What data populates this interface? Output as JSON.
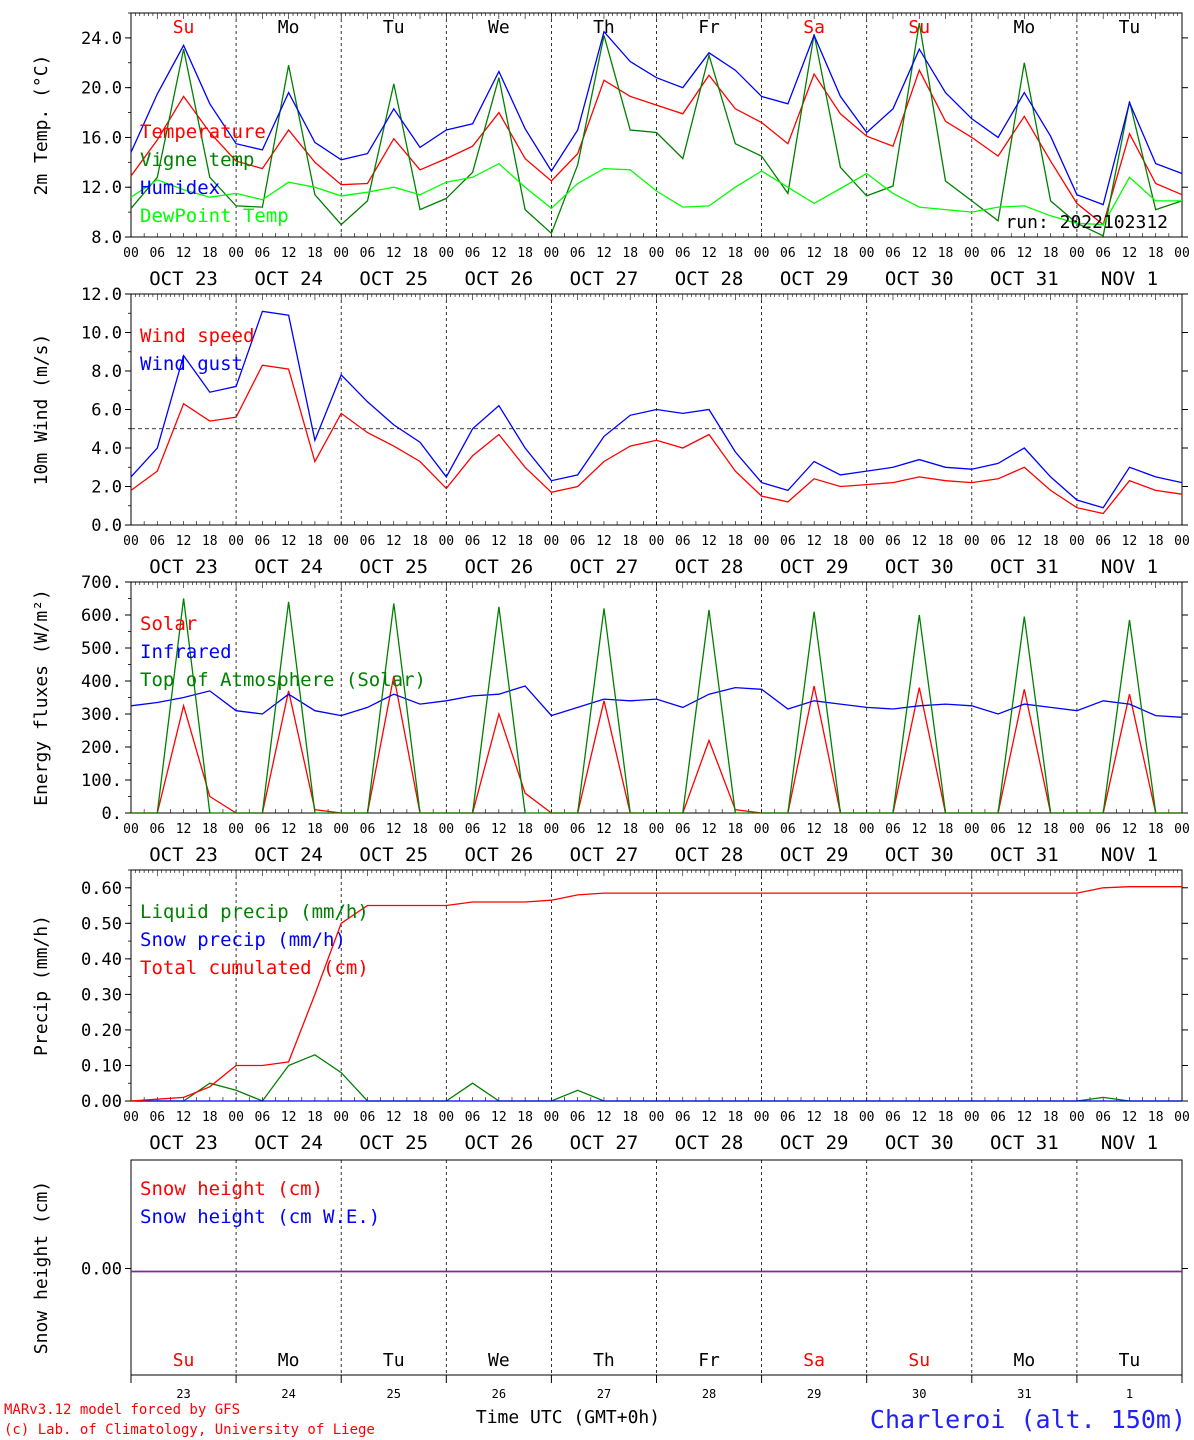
{
  "meta": {
    "run_label": "run: 2022102312",
    "model_label": "MARv3.12 model forced by GFS",
    "credit_label": "(c) Lab. of Climatology, University of Liege",
    "time_label": "Time UTC (GMT+0h)",
    "station_label": "Charleroi (alt. 150m)"
  },
  "days": {
    "names": [
      "Su",
      "Mo",
      "Tu",
      "We",
      "Th",
      "Fr",
      "Sa",
      "Su",
      "Mo",
      "Tu"
    ],
    "name_colors": [
      "#ff0000",
      "#000000",
      "#000000",
      "#000000",
      "#000000",
      "#000000",
      "#ff0000",
      "#ff0000",
      "#000000",
      "#000000"
    ],
    "date_labels": [
      "OCT 23",
      "OCT 24",
      "OCT 25",
      "OCT 26",
      "OCT 27",
      "OCT 28",
      "OCT 29",
      "OCT 30",
      "OCT 31",
      "NOV  1"
    ],
    "day_numbers": [
      "23",
      "24",
      "25",
      "26",
      "27",
      "28",
      "29",
      "30",
      "31",
      "1"
    ],
    "hour_ticks": [
      "00",
      "06",
      "12",
      "18"
    ],
    "final_tick": "00"
  },
  "chart_data": [
    {
      "type": "line",
      "ylabel": "2m Temp. (°C)",
      "ylim": [
        8,
        26
      ],
      "yticks": [
        "8.0",
        "12.0",
        "16.0",
        "20.0",
        "24.0"
      ],
      "x_hours": [
        0,
        6,
        12,
        18,
        24,
        30,
        36,
        42,
        48,
        54,
        60,
        66,
        72,
        78,
        84,
        90,
        96,
        102,
        108,
        114,
        120,
        126,
        132,
        138,
        144,
        150,
        156,
        162,
        168,
        174,
        180,
        186,
        192,
        198,
        204,
        210,
        216,
        222,
        228,
        234,
        240
      ],
      "series": [
        {
          "name": "Temperature",
          "color": "#ff0000",
          "values": [
            12.9,
            15.8,
            19.3,
            16.4,
            14.1,
            13.5,
            16.6,
            14.0,
            12.2,
            12.3,
            15.9,
            13.4,
            14.3,
            15.3,
            18.0,
            14.3,
            12.5,
            14.7,
            20.6,
            19.3,
            18.6,
            17.9,
            21.0,
            18.3,
            17.2,
            15.5,
            21.1,
            17.9,
            16.1,
            15.3,
            21.4,
            17.3,
            16.0,
            14.5,
            17.7,
            14.1,
            10.7,
            9.0,
            16.3,
            12.3,
            11.4
          ]
        },
        {
          "name": "Vigne temp",
          "color": "#008000",
          "values": [
            10.3,
            12.8,
            23.1,
            12.8,
            10.5,
            10.4,
            21.8,
            11.4,
            9.0,
            10.9,
            20.3,
            10.2,
            11.1,
            13.2,
            20.8,
            10.2,
            8.3,
            13.8,
            24.2,
            16.6,
            16.4,
            14.3,
            22.6,
            15.5,
            14.5,
            11.5,
            24.3,
            13.6,
            11.3,
            12.1,
            25.2,
            12.5,
            10.9,
            9.3,
            22.0,
            10.9,
            9.1,
            8.1,
            18.9,
            10.2,
            10.9
          ]
        },
        {
          "name": "Humidex",
          "color": "#0000ff",
          "values": [
            14.8,
            19.5,
            23.4,
            18.7,
            15.5,
            15.0,
            19.6,
            15.6,
            14.2,
            14.7,
            18.3,
            15.2,
            16.6,
            17.1,
            21.3,
            16.7,
            13.3,
            16.6,
            24.5,
            22.1,
            20.8,
            20.0,
            22.8,
            21.4,
            19.3,
            18.7,
            24.2,
            19.3,
            16.4,
            18.3,
            23.1,
            19.6,
            17.5,
            16.0,
            19.6,
            16.1,
            11.4,
            10.6,
            18.8,
            13.9,
            13.1
          ]
        },
        {
          "name": "DewPoint Temp",
          "color": "#00ff00",
          "values": [
            11.2,
            12.6,
            11.8,
            11.2,
            11.5,
            11.0,
            12.4,
            12.0,
            11.3,
            11.6,
            12.0,
            11.4,
            12.4,
            12.8,
            13.9,
            12.0,
            10.3,
            12.3,
            13.5,
            13.4,
            11.7,
            10.4,
            10.5,
            12.0,
            13.3,
            12.0,
            10.7,
            11.9,
            13.1,
            11.5,
            10.4,
            10.2,
            10.0,
            10.4,
            10.5,
            9.7,
            9.1,
            9.0,
            12.8,
            10.9,
            10.9
          ]
        }
      ]
    },
    {
      "type": "line",
      "ylabel": "10m Wind (m/s)",
      "ylim": [
        0,
        12
      ],
      "yticks": [
        "0.0",
        "2.0",
        "4.0",
        "6.0",
        "8.0",
        "10.0",
        "12.0"
      ],
      "reference_line": 5,
      "x_hours": [
        0,
        6,
        12,
        18,
        24,
        30,
        36,
        42,
        48,
        54,
        60,
        66,
        72,
        78,
        84,
        90,
        96,
        102,
        108,
        114,
        120,
        126,
        132,
        138,
        144,
        150,
        156,
        162,
        168,
        174,
        180,
        186,
        192,
        198,
        204,
        210,
        216,
        222,
        228,
        234,
        240
      ],
      "series": [
        {
          "name": "Wind speed",
          "color": "#ff0000",
          "values": [
            1.8,
            2.8,
            6.3,
            5.4,
            5.6,
            8.3,
            8.1,
            3.3,
            5.8,
            4.8,
            4.1,
            3.3,
            1.9,
            3.6,
            4.7,
            3.0,
            1.7,
            2.0,
            3.3,
            4.1,
            4.4,
            4.0,
            4.7,
            2.8,
            1.5,
            1.2,
            2.4,
            2.0,
            2.1,
            2.2,
            2.5,
            2.3,
            2.2,
            2.4,
            3.0,
            1.8,
            0.9,
            0.6,
            2.3,
            1.8,
            1.6
          ]
        },
        {
          "name": "Wind gust",
          "color": "#0000ff",
          "values": [
            2.5,
            4.0,
            8.8,
            6.9,
            7.2,
            11.1,
            10.9,
            4.4,
            7.8,
            6.4,
            5.2,
            4.3,
            2.5,
            5.0,
            6.2,
            4.0,
            2.3,
            2.6,
            4.6,
            5.7,
            6.0,
            5.8,
            6.0,
            3.8,
            2.2,
            1.8,
            3.3,
            2.6,
            2.8,
            3.0,
            3.4,
            3.0,
            2.9,
            3.2,
            4.0,
            2.5,
            1.3,
            0.9,
            3.0,
            2.5,
            2.2
          ]
        }
      ]
    },
    {
      "type": "line",
      "ylabel": "Energy fluxes (W/m²)",
      "ylim": [
        0,
        700
      ],
      "yticks": [
        "0.",
        "100.",
        "200.",
        "300.",
        "400.",
        "500.",
        "600.",
        "700."
      ],
      "x_hours": [
        0,
        6,
        12,
        18,
        24,
        30,
        36,
        42,
        48,
        54,
        60,
        66,
        72,
        78,
        84,
        90,
        96,
        102,
        108,
        114,
        120,
        126,
        132,
        138,
        144,
        150,
        156,
        162,
        168,
        174,
        180,
        186,
        192,
        198,
        204,
        210,
        216,
        222,
        228,
        234,
        240
      ],
      "series": [
        {
          "name": "Solar",
          "color": "#ff0000",
          "values": [
            0,
            0,
            325,
            50,
            0,
            0,
            370,
            10,
            0,
            0,
            415,
            0,
            0,
            0,
            300,
            60,
            0,
            0,
            340,
            0,
            0,
            0,
            220,
            10,
            0,
            0,
            385,
            0,
            0,
            0,
            380,
            0,
            0,
            0,
            375,
            0,
            0,
            0,
            360,
            0,
            0
          ]
        },
        {
          "name": "Infrared",
          "color": "#0000ff",
          "values": [
            325,
            335,
            350,
            370,
            310,
            300,
            360,
            310,
            295,
            320,
            360,
            330,
            340,
            355,
            360,
            385,
            295,
            320,
            345,
            340,
            345,
            320,
            360,
            380,
            375,
            315,
            340,
            330,
            320,
            315,
            325,
            330,
            325,
            300,
            330,
            320,
            310,
            340,
            330,
            295,
            290
          ]
        },
        {
          "name": "Top of Atmosphere (Solar)",
          "color": "#008000",
          "values": [
            0,
            0,
            650,
            0,
            0,
            0,
            640,
            0,
            0,
            0,
            635,
            0,
            0,
            0,
            625,
            0,
            0,
            0,
            620,
            0,
            0,
            0,
            615,
            0,
            0,
            0,
            610,
            0,
            0,
            0,
            600,
            0,
            0,
            0,
            595,
            0,
            0,
            0,
            585,
            0,
            0
          ]
        }
      ]
    },
    {
      "type": "line",
      "ylabel": "Precip (mm/h)",
      "ylim": [
        0,
        0.65
      ],
      "yticks": [
        "0.00",
        "0.10",
        "0.20",
        "0.30",
        "0.40",
        "0.50",
        "0.60"
      ],
      "x_hours": [
        0,
        6,
        12,
        18,
        24,
        30,
        36,
        42,
        48,
        54,
        60,
        66,
        72,
        78,
        84,
        90,
        96,
        102,
        108,
        114,
        120,
        126,
        132,
        138,
        144,
        150,
        156,
        162,
        168,
        174,
        180,
        186,
        192,
        198,
        204,
        210,
        216,
        222,
        228,
        234,
        240
      ],
      "series": [
        {
          "name": "Liquid precip (mm/h)",
          "color": "#008000",
          "values": [
            0,
            0,
            0,
            0.05,
            0.03,
            0,
            0.1,
            0.13,
            0.08,
            0,
            0,
            0,
            0,
            0.05,
            0,
            0,
            0,
            0.03,
            0,
            0,
            0,
            0,
            0,
            0,
            0,
            0,
            0,
            0,
            0,
            0,
            0,
            0,
            0,
            0,
            0,
            0,
            0,
            0.01,
            0,
            0,
            0
          ]
        },
        {
          "name": "Snow precip (mm/h)",
          "color": "#0000ff",
          "values": [
            0,
            0,
            0,
            0,
            0,
            0,
            0,
            0,
            0,
            0,
            0,
            0,
            0,
            0,
            0,
            0,
            0,
            0,
            0,
            0,
            0,
            0,
            0,
            0,
            0,
            0,
            0,
            0,
            0,
            0,
            0,
            0,
            0,
            0,
            0,
            0,
            0,
            0,
            0,
            0,
            0
          ]
        },
        {
          "name": "Total cumulated (cm)",
          "color": "#ff0000",
          "values": [
            0,
            0.005,
            0.01,
            0.04,
            0.1,
            0.1,
            0.11,
            0.3,
            0.5,
            0.55,
            0.55,
            0.55,
            0.55,
            0.56,
            0.56,
            0.56,
            0.565,
            0.58,
            0.585,
            0.585,
            0.585,
            0.585,
            0.585,
            0.585,
            0.585,
            0.585,
            0.585,
            0.585,
            0.585,
            0.585,
            0.585,
            0.585,
            0.585,
            0.585,
            0.585,
            0.585,
            0.585,
            0.6,
            0.603,
            0.603,
            0.603
          ]
        }
      ]
    },
    {
      "type": "line",
      "ylabel": "Snow height (cm)",
      "yticks": [
        "0.00"
      ],
      "x_hours": [
        0,
        240
      ],
      "series": [
        {
          "name": "Snow height (cm)",
          "color": "#ff0000",
          "values": [
            0,
            0
          ]
        },
        {
          "name": "Snow height (cm W.E.)",
          "color": "#0000ff",
          "values": [
            0,
            0
          ]
        }
      ]
    }
  ]
}
